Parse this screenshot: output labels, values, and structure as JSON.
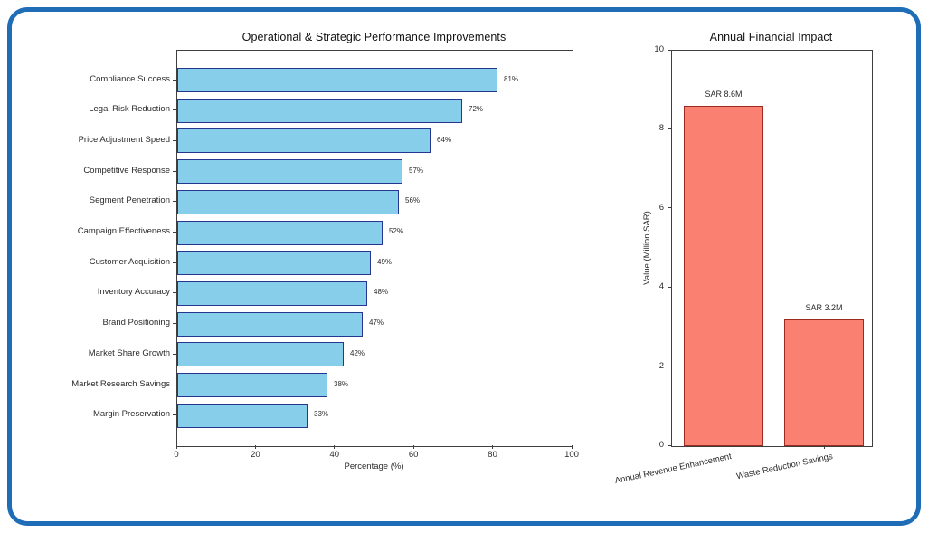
{
  "frame": {
    "border_color": "#1e6db6"
  },
  "chart_data": [
    {
      "type": "bar",
      "orientation": "horizontal",
      "title": "Operational & Strategic Performance Improvements",
      "categories": [
        "Compliance Success",
        "Legal Risk Reduction",
        "Price Adjustment Speed",
        "Competitive Response",
        "Segment Penetration",
        "Campaign Effectiveness",
        "Customer Acquisition",
        "Inventory Accuracy",
        "Brand Positioning",
        "Market Share Growth",
        "Market Research Savings",
        "Margin Preservation"
      ],
      "values": [
        81,
        72,
        64,
        57,
        56,
        52,
        49,
        48,
        47,
        42,
        38,
        33
      ],
      "value_labels": [
        "81%",
        "72%",
        "64%",
        "57%",
        "56%",
        "52%",
        "49%",
        "48%",
        "47%",
        "42%",
        "38%",
        "33%"
      ],
      "xlabel": "Percentage (%)",
      "xlim": [
        0,
        100
      ],
      "xticks": [
        0,
        20,
        40,
        60,
        80,
        100
      ],
      "grid": false,
      "bar_color": "#87CEEB",
      "bar_edge_color": "#24368f"
    },
    {
      "type": "bar",
      "orientation": "vertical",
      "title": "Annual Financial Impact",
      "categories": [
        "Annual Revenue Enhancement",
        "Waste Reduction Savings"
      ],
      "values": [
        8.6,
        3.2
      ],
      "value_labels": [
        "SAR 8.6M",
        "SAR 3.2M"
      ],
      "ylabel": "Value (Million SAR)",
      "ylim": [
        0,
        10
      ],
      "yticks": [
        0,
        2,
        4,
        6,
        8,
        10
      ],
      "grid": false,
      "bar_color": "#FA8072",
      "bar_edge_color": "#9c2a21"
    }
  ]
}
